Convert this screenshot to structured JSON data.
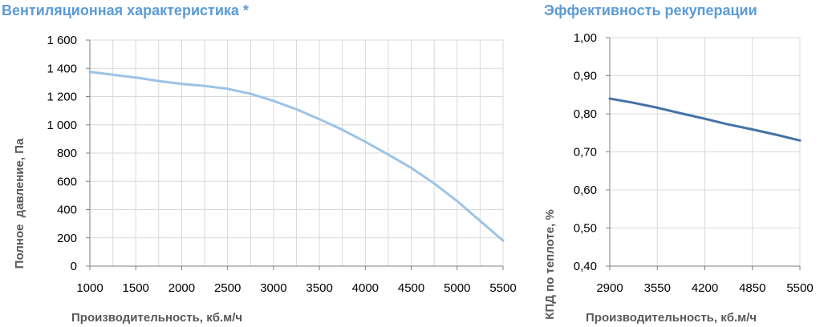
{
  "chart_data": [
    {
      "type": "line",
      "title": "Вентиляционная характеристика *",
      "xlabel": "Производительность, кб.м/ч",
      "ylabel": "Полное  давление, Па",
      "xlim": [
        1000,
        5500
      ],
      "ylim": [
        0,
        1600
      ],
      "x_ticks": [
        "1000",
        "1500",
        "2000",
        "2500",
        "3000",
        "3500",
        "4000",
        "4500",
        "5000",
        "5500"
      ],
      "y_ticks": [
        "0",
        "200",
        "400",
        "600",
        "800",
        "1 000",
        "1 200",
        "1 400",
        "1 600"
      ],
      "x_tick_values": [
        1000,
        1500,
        2000,
        2500,
        3000,
        3500,
        4000,
        4500,
        5000,
        5500
      ],
      "y_tick_values": [
        0,
        200,
        400,
        600,
        800,
        1000,
        1200,
        1400,
        1600
      ],
      "x_minor_step": 250,
      "grid": true,
      "line_color": "#9DC3E6",
      "series": [
        {
          "x": [
            1000,
            1250,
            1500,
            1750,
            2000,
            2250,
            2500,
            2750,
            3000,
            3250,
            3500,
            3750,
            4000,
            4250,
            4500,
            4750,
            5000,
            5250,
            5500
          ],
          "values": [
            1375,
            1355,
            1335,
            1310,
            1290,
            1275,
            1255,
            1220,
            1170,
            1110,
            1040,
            965,
            880,
            790,
            695,
            585,
            460,
            320,
            180
          ]
        }
      ]
    },
    {
      "type": "line",
      "title": "Эффективность рекуперации",
      "xlabel": "Производительность, кб.м/ч",
      "ylabel": "КПД по теплоте, %",
      "xlim": [
        2900,
        5500
      ],
      "ylim": [
        0.4,
        1.0
      ],
      "x_ticks": [
        "2900",
        "3550",
        "4200",
        "4850",
        "5500"
      ],
      "y_ticks": [
        "0,40",
        "0,50",
        "0,60",
        "0,70",
        "0,80",
        "0,90",
        "1,00"
      ],
      "x_tick_values": [
        2900,
        3550,
        4200,
        4850,
        5500
      ],
      "y_tick_values": [
        0.4,
        0.5,
        0.6,
        0.7,
        0.8,
        0.9,
        1.0
      ],
      "grid": true,
      "line_color": "#4472A8",
      "series": [
        {
          "x": [
            2900,
            3200,
            3550,
            3900,
            4200,
            4500,
            4850,
            5200,
            5500
          ],
          "values": [
            0.84,
            0.83,
            0.816,
            0.8,
            0.787,
            0.773,
            0.759,
            0.744,
            0.73
          ]
        }
      ]
    }
  ]
}
